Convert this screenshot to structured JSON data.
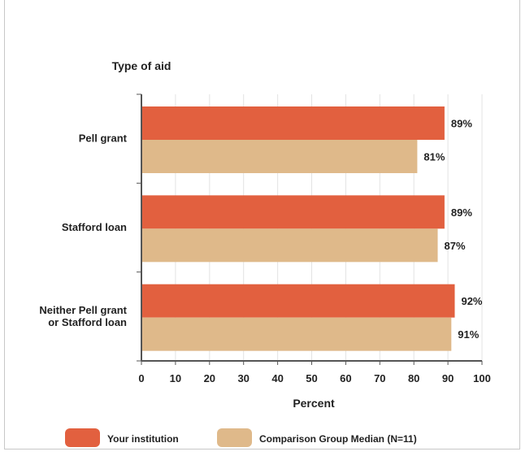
{
  "chart_data": {
    "type": "bar",
    "orientation": "horizontal",
    "category_axis_title": "Type of aid",
    "categories": [
      "Pell grant",
      "Stafford loan",
      "Neither Pell grant or Stafford loan"
    ],
    "category_lines": [
      [
        "Pell grant"
      ],
      [
        "Stafford loan"
      ],
      [
        "Neither Pell grant",
        "or Stafford loan"
      ]
    ],
    "series": [
      {
        "name": "Your institution",
        "values": [
          89,
          89,
          92
        ],
        "labels": [
          "89%",
          "89%",
          "92%"
        ],
        "color": "#e2603f"
      },
      {
        "name": "Comparison Group Median (N=11)",
        "values": [
          81,
          87,
          91
        ],
        "labels": [
          "81%",
          "87%",
          "91%"
        ],
        "color": "#dfb98a"
      }
    ],
    "xlabel": "Percent",
    "xlim": [
      0,
      100
    ],
    "xticks": [
      0,
      10,
      20,
      30,
      40,
      50,
      60,
      70,
      80,
      90,
      100
    ],
    "grid": true,
    "legend_position": "bottom"
  },
  "colors": {
    "accent": "#e2603f",
    "comparison": "#dfb98a",
    "grid": "#e3e3e3",
    "axis": "#555555"
  }
}
